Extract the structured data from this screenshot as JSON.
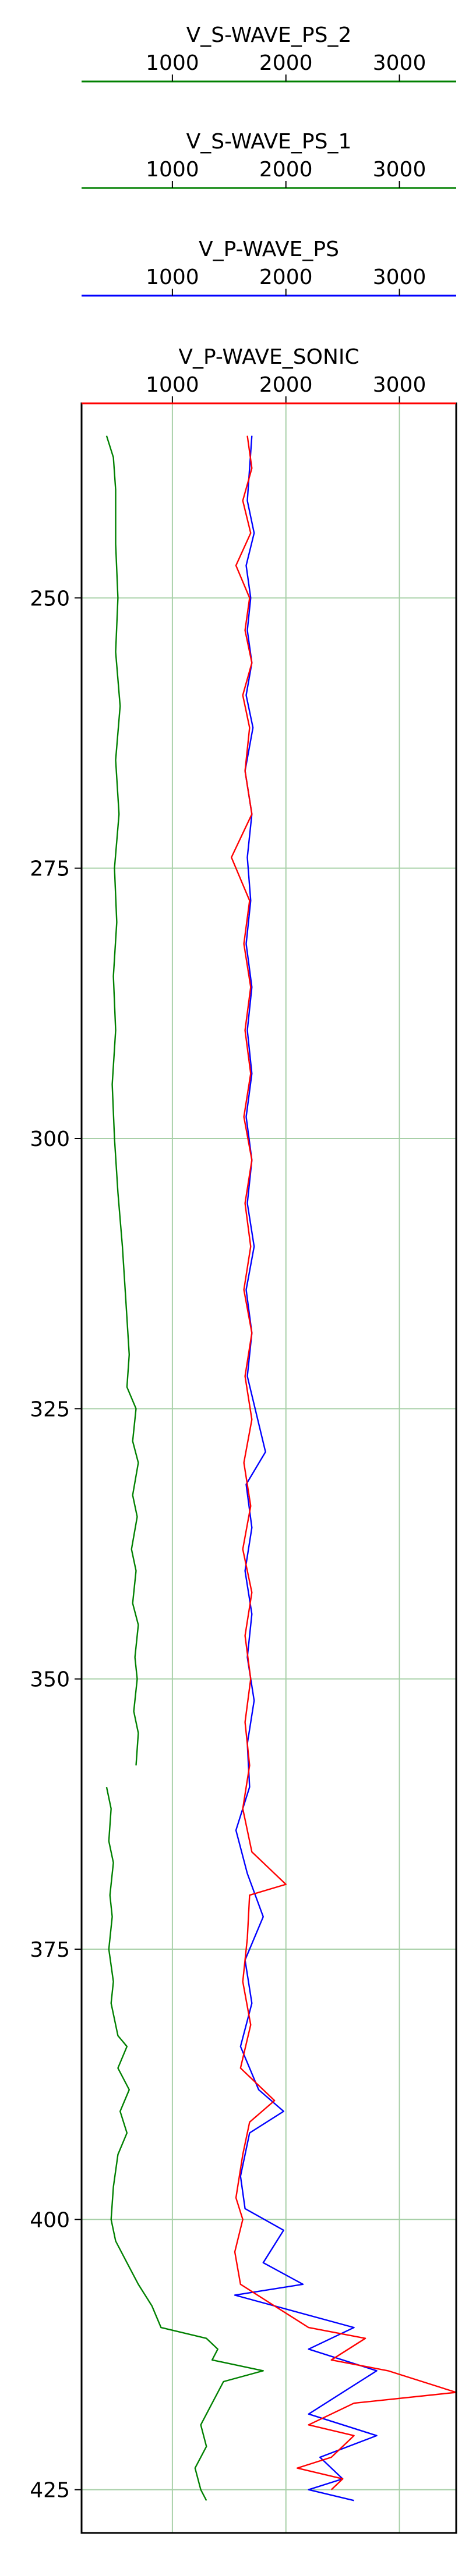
{
  "chart_data": {
    "type": "line",
    "orientation": "depth-log",
    "tracks": [
      {
        "name": "V_S-WAVE_PS_2",
        "color": "#008000",
        "xlim": [
          200,
          3500
        ],
        "xticks": [
          1000,
          2000,
          3000
        ]
      },
      {
        "name": "V_S-WAVE_PS_1",
        "color": "#008000",
        "xlim": [
          200,
          3500
        ],
        "xticks": [
          1000,
          2000,
          3000
        ]
      },
      {
        "name": "V_P-WAVE_PS",
        "color": "#0000ff",
        "xlim": [
          200,
          3500
        ],
        "xticks": [
          1000,
          2000,
          3000
        ]
      },
      {
        "name": "V_P-WAVE_SONIC",
        "color": "#ff0000",
        "xlim": [
          200,
          3500
        ],
        "xticks": [
          1000,
          2000,
          3000
        ]
      }
    ],
    "ylim": [
      429,
      232
    ],
    "yticks": [
      250,
      275,
      300,
      325,
      350,
      375,
      400,
      425
    ],
    "grid": true,
    "series": [
      {
        "name": "V_S-WAVE_PS_2",
        "color": "#008000",
        "points": [
          [
            420,
            235
          ],
          [
            480,
            237
          ],
          [
            500,
            240
          ],
          [
            500,
            245
          ],
          [
            520,
            250
          ],
          [
            500,
            255
          ],
          [
            540,
            260
          ],
          [
            500,
            265
          ],
          [
            530,
            270
          ],
          [
            490,
            275
          ],
          [
            510,
            280
          ],
          [
            480,
            285
          ],
          [
            500,
            290
          ],
          [
            470,
            295
          ],
          [
            490,
            300
          ],
          [
            520,
            305
          ],
          [
            560,
            310
          ],
          [
            590,
            315
          ],
          [
            620,
            320
          ],
          [
            600,
            323
          ],
          [
            680,
            325
          ],
          [
            650,
            328
          ],
          [
            700,
            330
          ],
          [
            650,
            333
          ],
          [
            690,
            335
          ],
          [
            640,
            338
          ],
          [
            680,
            340
          ],
          [
            650,
            343
          ],
          [
            700,
            345
          ],
          [
            670,
            348
          ],
          [
            690,
            350
          ],
          [
            660,
            353
          ],
          [
            700,
            355
          ],
          [
            680,
            358
          ]
        ]
      },
      {
        "name": "V_S-WAVE_PS_1",
        "color": "#008000",
        "points": [
          [
            420,
            360
          ],
          [
            460,
            362
          ],
          [
            440,
            365
          ],
          [
            480,
            367
          ],
          [
            450,
            370
          ],
          [
            470,
            372
          ],
          [
            440,
            375
          ],
          [
            480,
            378
          ],
          [
            460,
            380
          ],
          [
            520,
            383
          ],
          [
            600,
            384
          ],
          [
            520,
            386
          ],
          [
            620,
            388
          ],
          [
            540,
            390
          ],
          [
            600,
            392
          ],
          [
            520,
            394
          ],
          [
            480,
            397
          ],
          [
            460,
            400
          ],
          [
            500,
            402
          ],
          [
            600,
            404
          ],
          [
            700,
            406
          ],
          [
            820,
            408
          ],
          [
            900,
            410
          ],
          [
            1300,
            411
          ],
          [
            1400,
            412
          ],
          [
            1350,
            413
          ],
          [
            1800,
            414
          ],
          [
            1450,
            415
          ],
          [
            1350,
            417
          ],
          [
            1250,
            419
          ],
          [
            1300,
            421
          ],
          [
            1200,
            423
          ],
          [
            1250,
            425
          ],
          [
            1300,
            426
          ]
        ]
      },
      {
        "name": "V_P-WAVE_PS",
        "color": "#0000ff",
        "points": [
          [
            1700,
            235
          ],
          [
            1680,
            238
          ],
          [
            1660,
            241
          ],
          [
            1720,
            244
          ],
          [
            1650,
            247
          ],
          [
            1690,
            250
          ],
          [
            1660,
            253
          ],
          [
            1700,
            256
          ],
          [
            1650,
            259
          ],
          [
            1710,
            262
          ],
          [
            1640,
            266
          ],
          [
            1700,
            270
          ],
          [
            1660,
            274
          ],
          [
            1690,
            278
          ],
          [
            1650,
            282
          ],
          [
            1700,
            286
          ],
          [
            1660,
            290
          ],
          [
            1700,
            294
          ],
          [
            1650,
            298
          ],
          [
            1700,
            302
          ],
          [
            1660,
            306
          ],
          [
            1720,
            310
          ],
          [
            1650,
            314
          ],
          [
            1700,
            318
          ],
          [
            1660,
            322
          ],
          [
            1820,
            329
          ],
          [
            1650,
            332
          ],
          [
            1700,
            336
          ],
          [
            1640,
            340
          ],
          [
            1700,
            344
          ],
          [
            1660,
            348
          ],
          [
            1720,
            352
          ],
          [
            1660,
            356
          ],
          [
            1680,
            360
          ],
          [
            1560,
            364
          ],
          [
            1660,
            368
          ],
          [
            1800,
            372
          ],
          [
            1640,
            376
          ],
          [
            1700,
            380
          ],
          [
            1600,
            384
          ],
          [
            1760,
            388
          ],
          [
            1980,
            390
          ],
          [
            1680,
            392
          ],
          [
            1600,
            396
          ],
          [
            1640,
            399
          ],
          [
            1980,
            401
          ],
          [
            1800,
            404
          ],
          [
            2150,
            406
          ],
          [
            1550,
            407
          ],
          [
            2600,
            410
          ],
          [
            2200,
            412
          ],
          [
            2800,
            414
          ],
          [
            2500,
            416
          ],
          [
            2200,
            418
          ],
          [
            2800,
            420
          ],
          [
            2300,
            422
          ],
          [
            2500,
            424
          ],
          [
            2200,
            425
          ],
          [
            2600,
            426
          ]
        ]
      },
      {
        "name": "V_P-WAVE_SONIC",
        "color": "#ff0000",
        "points": [
          [
            1660,
            235
          ],
          [
            1700,
            238
          ],
          [
            1620,
            241
          ],
          [
            1690,
            244
          ],
          [
            1560,
            247
          ],
          [
            1680,
            250
          ],
          [
            1640,
            253
          ],
          [
            1700,
            256
          ],
          [
            1620,
            259
          ],
          [
            1680,
            262
          ],
          [
            1640,
            266
          ],
          [
            1700,
            270
          ],
          [
            1520,
            274
          ],
          [
            1680,
            278
          ],
          [
            1630,
            282
          ],
          [
            1690,
            286
          ],
          [
            1640,
            290
          ],
          [
            1690,
            294
          ],
          [
            1630,
            298
          ],
          [
            1700,
            302
          ],
          [
            1640,
            306
          ],
          [
            1690,
            310
          ],
          [
            1630,
            314
          ],
          [
            1700,
            318
          ],
          [
            1640,
            322
          ],
          [
            1700,
            326
          ],
          [
            1630,
            330
          ],
          [
            1690,
            334
          ],
          [
            1620,
            338
          ],
          [
            1700,
            342
          ],
          [
            1640,
            346
          ],
          [
            1690,
            350
          ],
          [
            1640,
            354
          ],
          [
            1680,
            358
          ],
          [
            1620,
            362
          ],
          [
            1700,
            366
          ],
          [
            2000,
            369
          ],
          [
            1680,
            370
          ],
          [
            1660,
            374
          ],
          [
            1620,
            378
          ],
          [
            1690,
            382
          ],
          [
            1600,
            386
          ],
          [
            1900,
            389
          ],
          [
            1680,
            391
          ],
          [
            1620,
            394
          ],
          [
            1560,
            398
          ],
          [
            1620,
            400
          ],
          [
            1550,
            403
          ],
          [
            1600,
            406
          ],
          [
            1900,
            408
          ],
          [
            2200,
            410
          ],
          [
            2700,
            411
          ],
          [
            2400,
            413
          ],
          [
            2900,
            414
          ],
          [
            3500,
            416
          ],
          [
            2600,
            417
          ],
          [
            2200,
            419
          ],
          [
            2600,
            420
          ],
          [
            2400,
            422
          ],
          [
            2100,
            423
          ],
          [
            2500,
            424
          ],
          [
            2400,
            425
          ]
        ]
      }
    ]
  }
}
